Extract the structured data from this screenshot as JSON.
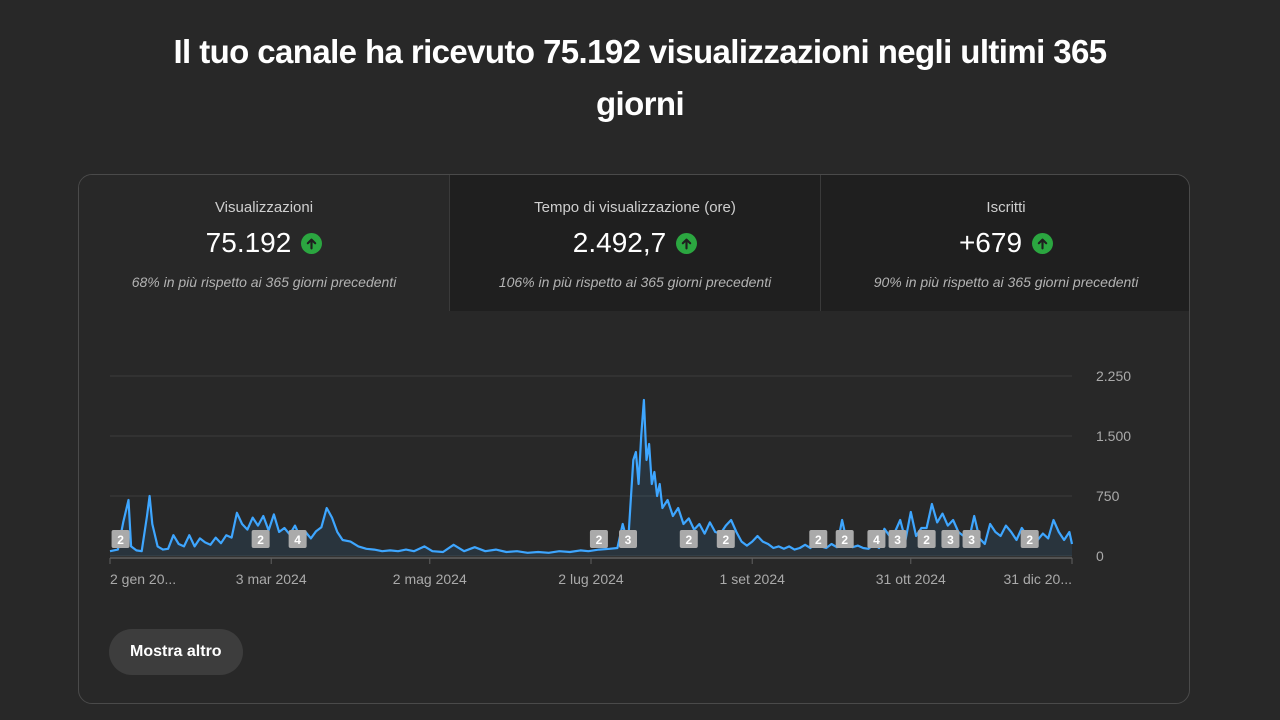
{
  "headline": "Il tuo canale ha ricevuto 75.192 visualizzazioni negli ultimi 365 giorni",
  "metrics": [
    {
      "label": "Visualizzazioni",
      "value": "75.192",
      "trend": "up",
      "note": "68% in più rispetto ai 365 giorni precedenti"
    },
    {
      "label": "Tempo di visualizzazione (ore)",
      "value": "2.492,7",
      "trend": "up",
      "note": "106% in più rispetto ai 365 giorni precedenti"
    },
    {
      "label": "Iscritti",
      "value": "+679",
      "trend": "up",
      "note": "90% in più rispetto ai 365 giorni precedenti"
    }
  ],
  "active_metric": "Visualizzazioni",
  "more_button_label": "Mostra altro",
  "colors": {
    "line": "#3ea6ff",
    "trend_up": "#2ba640",
    "marker": "#aaaaaa"
  },
  "chart_data": {
    "type": "area",
    "series_label": "Visualizzazioni",
    "x_start": "2024-01-02",
    "x_end": "2024-12-31",
    "x_tick_labels": [
      "2 gen 20...",
      "3 mar 2024",
      "2 mag 2024",
      "2 lug 2024",
      "1 set 2024",
      "31 ott 2024",
      "31 dic 20..."
    ],
    "x_tick_dates": [
      "2024-01-02",
      "2024-03-03",
      "2024-05-02",
      "2024-07-02",
      "2024-09-01",
      "2024-10-31",
      "2024-12-31"
    ],
    "y_ticks": [
      0,
      750,
      1500,
      2250
    ],
    "y_tick_labels": [
      "0",
      "750",
      "1.500",
      "2.250"
    ],
    "ylim": [
      0,
      2250
    ],
    "grid": true,
    "y_axis_side": "right",
    "points": [
      [
        "2024-01-02",
        60
      ],
      [
        "2024-01-05",
        80
      ],
      [
        "2024-01-07",
        420
      ],
      [
        "2024-01-09",
        700
      ],
      [
        "2024-01-10",
        120
      ],
      [
        "2024-01-12",
        70
      ],
      [
        "2024-01-14",
        60
      ],
      [
        "2024-01-16",
        500
      ],
      [
        "2024-01-17",
        750
      ],
      [
        "2024-01-18",
        400
      ],
      [
        "2024-01-20",
        120
      ],
      [
        "2024-01-22",
        80
      ],
      [
        "2024-01-24",
        90
      ],
      [
        "2024-01-26",
        260
      ],
      [
        "2024-01-28",
        150
      ],
      [
        "2024-01-30",
        120
      ],
      [
        "2024-02-01",
        260
      ],
      [
        "2024-02-03",
        120
      ],
      [
        "2024-02-05",
        220
      ],
      [
        "2024-02-07",
        170
      ],
      [
        "2024-02-09",
        140
      ],
      [
        "2024-02-11",
        230
      ],
      [
        "2024-02-13",
        160
      ],
      [
        "2024-02-15",
        260
      ],
      [
        "2024-02-17",
        230
      ],
      [
        "2024-02-19",
        540
      ],
      [
        "2024-02-21",
        400
      ],
      [
        "2024-02-23",
        330
      ],
      [
        "2024-02-25",
        480
      ],
      [
        "2024-02-27",
        380
      ],
      [
        "2024-02-29",
        500
      ],
      [
        "2024-03-02",
        320
      ],
      [
        "2024-03-04",
        520
      ],
      [
        "2024-03-06",
        300
      ],
      [
        "2024-03-08",
        350
      ],
      [
        "2024-03-10",
        270
      ],
      [
        "2024-03-12",
        380
      ],
      [
        "2024-03-14",
        230
      ],
      [
        "2024-03-16",
        300
      ],
      [
        "2024-03-18",
        220
      ],
      [
        "2024-03-20",
        310
      ],
      [
        "2024-03-22",
        360
      ],
      [
        "2024-03-24",
        600
      ],
      [
        "2024-03-26",
        480
      ],
      [
        "2024-03-28",
        300
      ],
      [
        "2024-03-30",
        200
      ],
      [
        "2024-04-02",
        180
      ],
      [
        "2024-04-05",
        120
      ],
      [
        "2024-04-08",
        90
      ],
      [
        "2024-04-11",
        80
      ],
      [
        "2024-04-14",
        60
      ],
      [
        "2024-04-17",
        70
      ],
      [
        "2024-04-20",
        60
      ],
      [
        "2024-04-23",
        80
      ],
      [
        "2024-04-26",
        60
      ],
      [
        "2024-04-30",
        120
      ],
      [
        "2024-05-03",
        60
      ],
      [
        "2024-05-07",
        50
      ],
      [
        "2024-05-11",
        140
      ],
      [
        "2024-05-15",
        60
      ],
      [
        "2024-05-19",
        110
      ],
      [
        "2024-05-23",
        60
      ],
      [
        "2024-05-27",
        80
      ],
      [
        "2024-05-31",
        50
      ],
      [
        "2024-06-04",
        60
      ],
      [
        "2024-06-08",
        40
      ],
      [
        "2024-06-12",
        50
      ],
      [
        "2024-06-16",
        40
      ],
      [
        "2024-06-20",
        60
      ],
      [
        "2024-06-24",
        50
      ],
      [
        "2024-06-28",
        70
      ],
      [
        "2024-07-01",
        60
      ],
      [
        "2024-07-05",
        80
      ],
      [
        "2024-07-09",
        90
      ],
      [
        "2024-07-12",
        100
      ],
      [
        "2024-07-14",
        400
      ],
      [
        "2024-07-16",
        150
      ],
      [
        "2024-07-18",
        1200
      ],
      [
        "2024-07-19",
        1300
      ],
      [
        "2024-07-20",
        900
      ],
      [
        "2024-07-21",
        1500
      ],
      [
        "2024-07-22",
        1950
      ],
      [
        "2024-07-23",
        1200
      ],
      [
        "2024-07-24",
        1400
      ],
      [
        "2024-07-25",
        900
      ],
      [
        "2024-07-26",
        1050
      ],
      [
        "2024-07-27",
        750
      ],
      [
        "2024-07-28",
        900
      ],
      [
        "2024-07-29",
        600
      ],
      [
        "2024-07-31",
        700
      ],
      [
        "2024-08-02",
        500
      ],
      [
        "2024-08-04",
        600
      ],
      [
        "2024-08-06",
        400
      ],
      [
        "2024-08-08",
        470
      ],
      [
        "2024-08-10",
        330
      ],
      [
        "2024-08-12",
        400
      ],
      [
        "2024-08-14",
        280
      ],
      [
        "2024-08-16",
        420
      ],
      [
        "2024-08-18",
        300
      ],
      [
        "2024-08-20",
        280
      ],
      [
        "2024-08-22",
        380
      ],
      [
        "2024-08-24",
        450
      ],
      [
        "2024-08-26",
        300
      ],
      [
        "2024-08-28",
        180
      ],
      [
        "2024-08-30",
        130
      ],
      [
        "2024-09-01",
        180
      ],
      [
        "2024-09-03",
        250
      ],
      [
        "2024-09-05",
        180
      ],
      [
        "2024-09-07",
        150
      ],
      [
        "2024-09-09",
        100
      ],
      [
        "2024-09-11",
        120
      ],
      [
        "2024-09-13",
        90
      ],
      [
        "2024-09-15",
        120
      ],
      [
        "2024-09-17",
        80
      ],
      [
        "2024-09-19",
        100
      ],
      [
        "2024-09-21",
        140
      ],
      [
        "2024-09-23",
        100
      ],
      [
        "2024-09-25",
        180
      ],
      [
        "2024-09-27",
        120
      ],
      [
        "2024-09-29",
        100
      ],
      [
        "2024-10-01",
        150
      ],
      [
        "2024-10-03",
        110
      ],
      [
        "2024-10-05",
        450
      ],
      [
        "2024-10-07",
        150
      ],
      [
        "2024-10-09",
        110
      ],
      [
        "2024-10-11",
        130
      ],
      [
        "2024-10-13",
        100
      ],
      [
        "2024-10-15",
        90
      ],
      [
        "2024-10-17",
        150
      ],
      [
        "2024-10-19",
        100
      ],
      [
        "2024-10-21",
        340
      ],
      [
        "2024-10-23",
        250
      ],
      [
        "2024-10-25",
        300
      ],
      [
        "2024-10-27",
        450
      ],
      [
        "2024-10-29",
        200
      ],
      [
        "2024-10-31",
        550
      ],
      [
        "2024-11-02",
        250
      ],
      [
        "2024-11-04",
        350
      ],
      [
        "2024-11-06",
        350
      ],
      [
        "2024-11-08",
        650
      ],
      [
        "2024-11-10",
        420
      ],
      [
        "2024-11-12",
        530
      ],
      [
        "2024-11-14",
        380
      ],
      [
        "2024-11-16",
        450
      ],
      [
        "2024-11-18",
        300
      ],
      [
        "2024-11-20",
        250
      ],
      [
        "2024-11-22",
        200
      ],
      [
        "2024-11-24",
        500
      ],
      [
        "2024-11-26",
        220
      ],
      [
        "2024-11-28",
        150
      ],
      [
        "2024-11-30",
        400
      ],
      [
        "2024-12-02",
        300
      ],
      [
        "2024-12-04",
        250
      ],
      [
        "2024-12-06",
        380
      ],
      [
        "2024-12-08",
        300
      ],
      [
        "2024-12-10",
        200
      ],
      [
        "2024-12-12",
        350
      ],
      [
        "2024-12-14",
        250
      ],
      [
        "2024-12-16",
        300
      ],
      [
        "2024-12-18",
        200
      ],
      [
        "2024-12-20",
        280
      ],
      [
        "2024-12-22",
        220
      ],
      [
        "2024-12-24",
        450
      ],
      [
        "2024-12-26",
        300
      ],
      [
        "2024-12-28",
        200
      ],
      [
        "2024-12-30",
        300
      ],
      [
        "2024-12-31",
        150
      ]
    ],
    "markers": [
      {
        "date": "2024-01-06",
        "label": "2"
      },
      {
        "date": "2024-02-28",
        "label": "2"
      },
      {
        "date": "2024-03-13",
        "label": "4"
      },
      {
        "date": "2024-07-05",
        "label": "2"
      },
      {
        "date": "2024-07-16",
        "label": "3"
      },
      {
        "date": "2024-08-08",
        "label": "2"
      },
      {
        "date": "2024-08-22",
        "label": "2"
      },
      {
        "date": "2024-09-26",
        "label": "2"
      },
      {
        "date": "2024-10-06",
        "label": "2"
      },
      {
        "date": "2024-10-18",
        "label": "4"
      },
      {
        "date": "2024-10-26",
        "label": "3"
      },
      {
        "date": "2024-11-06",
        "label": "2"
      },
      {
        "date": "2024-11-15",
        "label": "3"
      },
      {
        "date": "2024-11-23",
        "label": "3"
      },
      {
        "date": "2024-12-15",
        "label": "2"
      }
    ]
  }
}
